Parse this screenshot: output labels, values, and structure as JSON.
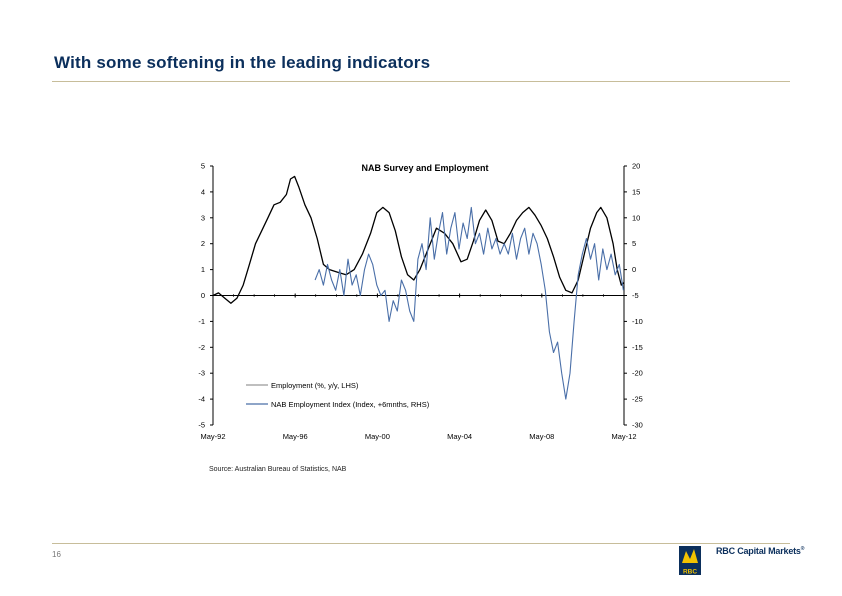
{
  "slide": {
    "title": "With some softening in the leading indicators",
    "source": "Source: Australian Bureau of Statistics, NAB",
    "page_number": "16",
    "brand_name": "RBC Capital Markets",
    "brand_mark": "®",
    "logo_text": "RBC"
  },
  "colors": {
    "title": "#0b2f5c",
    "employment": "#000000",
    "nab_index": "#4a6fa8",
    "rule": "#c7bd9a"
  },
  "chart_data": {
    "type": "line",
    "title": "NAB Survey and Employment",
    "x_tick_labels": [
      "May-92",
      "May-96",
      "May-00",
      "May-04",
      "May-08",
      "May-12"
    ],
    "x_tick_years": [
      1992.33,
      1996.33,
      2000.33,
      2004.33,
      2008.33,
      2012.33
    ],
    "xlim": [
      1992.33,
      2012.33
    ],
    "ylim_left": [
      -5,
      5
    ],
    "ylim_right": [
      -30,
      20
    ],
    "y_ticks_left": [
      "5",
      "4",
      "3",
      "2",
      "1",
      "0",
      "-1",
      "-2",
      "-3",
      "-4",
      "-5"
    ],
    "y_ticks_right": [
      "20",
      "15",
      "10",
      "5",
      "0",
      "-5",
      "-10",
      "-15",
      "-20",
      "-25",
      "-30"
    ],
    "legend": {
      "position": "bottom-left",
      "entries": [
        "Employment (%, y/y, LHS)",
        "NAB Employment Index (Index, +6mnths, RHS)"
      ]
    },
    "series": [
      {
        "name": "Employment (%, y/y, LHS)",
        "axis": "left",
        "points": [
          [
            1992.33,
            0
          ],
          [
            1992.6,
            0.1
          ],
          [
            1992.9,
            -0.1
          ],
          [
            1993.2,
            -0.3
          ],
          [
            1993.5,
            -0.1
          ],
          [
            1993.8,
            0.4
          ],
          [
            1994.1,
            1.2
          ],
          [
            1994.4,
            2.0
          ],
          [
            1994.7,
            2.5
          ],
          [
            1995.0,
            3.0
          ],
          [
            1995.3,
            3.5
          ],
          [
            1995.6,
            3.6
          ],
          [
            1995.9,
            3.9
          ],
          [
            1996.1,
            4.5
          ],
          [
            1996.3,
            4.6
          ],
          [
            1996.5,
            4.2
          ],
          [
            1996.8,
            3.5
          ],
          [
            1997.1,
            3.0
          ],
          [
            1997.4,
            2.2
          ],
          [
            1997.7,
            1.2
          ],
          [
            1998.0,
            1.0
          ],
          [
            1998.4,
            0.9
          ],
          [
            1998.8,
            0.8
          ],
          [
            1999.2,
            1.0
          ],
          [
            1999.6,
            1.6
          ],
          [
            2000.0,
            2.4
          ],
          [
            2000.3,
            3.2
          ],
          [
            2000.6,
            3.4
          ],
          [
            2000.9,
            3.2
          ],
          [
            2001.2,
            2.5
          ],
          [
            2001.5,
            1.5
          ],
          [
            2001.8,
            0.8
          ],
          [
            2002.1,
            0.6
          ],
          [
            2002.4,
            1.0
          ],
          [
            2002.8,
            1.8
          ],
          [
            2003.2,
            2.6
          ],
          [
            2003.6,
            2.4
          ],
          [
            2004.0,
            2.0
          ],
          [
            2004.4,
            1.3
          ],
          [
            2004.7,
            1.4
          ],
          [
            2005.0,
            2.1
          ],
          [
            2005.3,
            2.9
          ],
          [
            2005.6,
            3.3
          ],
          [
            2005.9,
            2.9
          ],
          [
            2006.2,
            2.1
          ],
          [
            2006.5,
            2.0
          ],
          [
            2006.8,
            2.4
          ],
          [
            2007.1,
            2.9
          ],
          [
            2007.4,
            3.2
          ],
          [
            2007.7,
            3.4
          ],
          [
            2008.0,
            3.1
          ],
          [
            2008.3,
            2.7
          ],
          [
            2008.6,
            2.2
          ],
          [
            2008.9,
            1.5
          ],
          [
            2009.2,
            0.7
          ],
          [
            2009.5,
            0.2
          ],
          [
            2009.8,
            0.1
          ],
          [
            2010.1,
            0.6
          ],
          [
            2010.4,
            1.6
          ],
          [
            2010.7,
            2.6
          ],
          [
            2011.0,
            3.2
          ],
          [
            2011.2,
            3.4
          ],
          [
            2011.5,
            3.0
          ],
          [
            2011.8,
            2.0
          ],
          [
            2012.0,
            1.0
          ],
          [
            2012.2,
            0.4
          ],
          [
            2012.33,
            0.5
          ]
        ]
      },
      {
        "name": "NAB Employment Index (Index, +6mnths, RHS)",
        "axis": "right",
        "points": [
          [
            1997.3,
            -2
          ],
          [
            1997.5,
            0
          ],
          [
            1997.7,
            -3
          ],
          [
            1997.9,
            1
          ],
          [
            1998.1,
            -2
          ],
          [
            1998.3,
            -4
          ],
          [
            1998.5,
            0
          ],
          [
            1998.7,
            -5
          ],
          [
            1998.9,
            2
          ],
          [
            1999.1,
            -3
          ],
          [
            1999.3,
            -1
          ],
          [
            1999.5,
            -5
          ],
          [
            1999.7,
            0
          ],
          [
            1999.9,
            3
          ],
          [
            2000.1,
            1
          ],
          [
            2000.3,
            -3
          ],
          [
            2000.5,
            -5
          ],
          [
            2000.7,
            -4
          ],
          [
            2000.9,
            -10
          ],
          [
            2001.1,
            -6
          ],
          [
            2001.3,
            -8
          ],
          [
            2001.5,
            -2
          ],
          [
            2001.7,
            -4
          ],
          [
            2001.9,
            -8
          ],
          [
            2002.1,
            -10
          ],
          [
            2002.3,
            2
          ],
          [
            2002.5,
            5
          ],
          [
            2002.7,
            0
          ],
          [
            2002.9,
            10
          ],
          [
            2003.1,
            2
          ],
          [
            2003.3,
            7
          ],
          [
            2003.5,
            11
          ],
          [
            2003.7,
            3
          ],
          [
            2003.9,
            8
          ],
          [
            2004.1,
            11
          ],
          [
            2004.3,
            4
          ],
          [
            2004.5,
            9
          ],
          [
            2004.7,
            6
          ],
          [
            2004.9,
            12
          ],
          [
            2005.1,
            5
          ],
          [
            2005.3,
            7
          ],
          [
            2005.5,
            3
          ],
          [
            2005.7,
            8
          ],
          [
            2005.9,
            4
          ],
          [
            2006.1,
            6
          ],
          [
            2006.3,
            3
          ],
          [
            2006.5,
            5
          ],
          [
            2006.7,
            3
          ],
          [
            2006.9,
            7
          ],
          [
            2007.1,
            2
          ],
          [
            2007.3,
            6
          ],
          [
            2007.5,
            8
          ],
          [
            2007.7,
            3
          ],
          [
            2007.9,
            7
          ],
          [
            2008.1,
            5
          ],
          [
            2008.3,
            1
          ],
          [
            2008.5,
            -4
          ],
          [
            2008.7,
            -12
          ],
          [
            2008.9,
            -16
          ],
          [
            2009.1,
            -14
          ],
          [
            2009.3,
            -20
          ],
          [
            2009.5,
            -25
          ],
          [
            2009.7,
            -20
          ],
          [
            2009.9,
            -10
          ],
          [
            2010.1,
            -1
          ],
          [
            2010.3,
            3
          ],
          [
            2010.5,
            6
          ],
          [
            2010.7,
            2
          ],
          [
            2010.9,
            5
          ],
          [
            2011.1,
            -2
          ],
          [
            2011.3,
            4
          ],
          [
            2011.5,
            0
          ],
          [
            2011.7,
            3
          ],
          [
            2011.9,
            -1
          ],
          [
            2012.1,
            1
          ],
          [
            2012.3,
            -4
          ]
        ]
      }
    ]
  }
}
